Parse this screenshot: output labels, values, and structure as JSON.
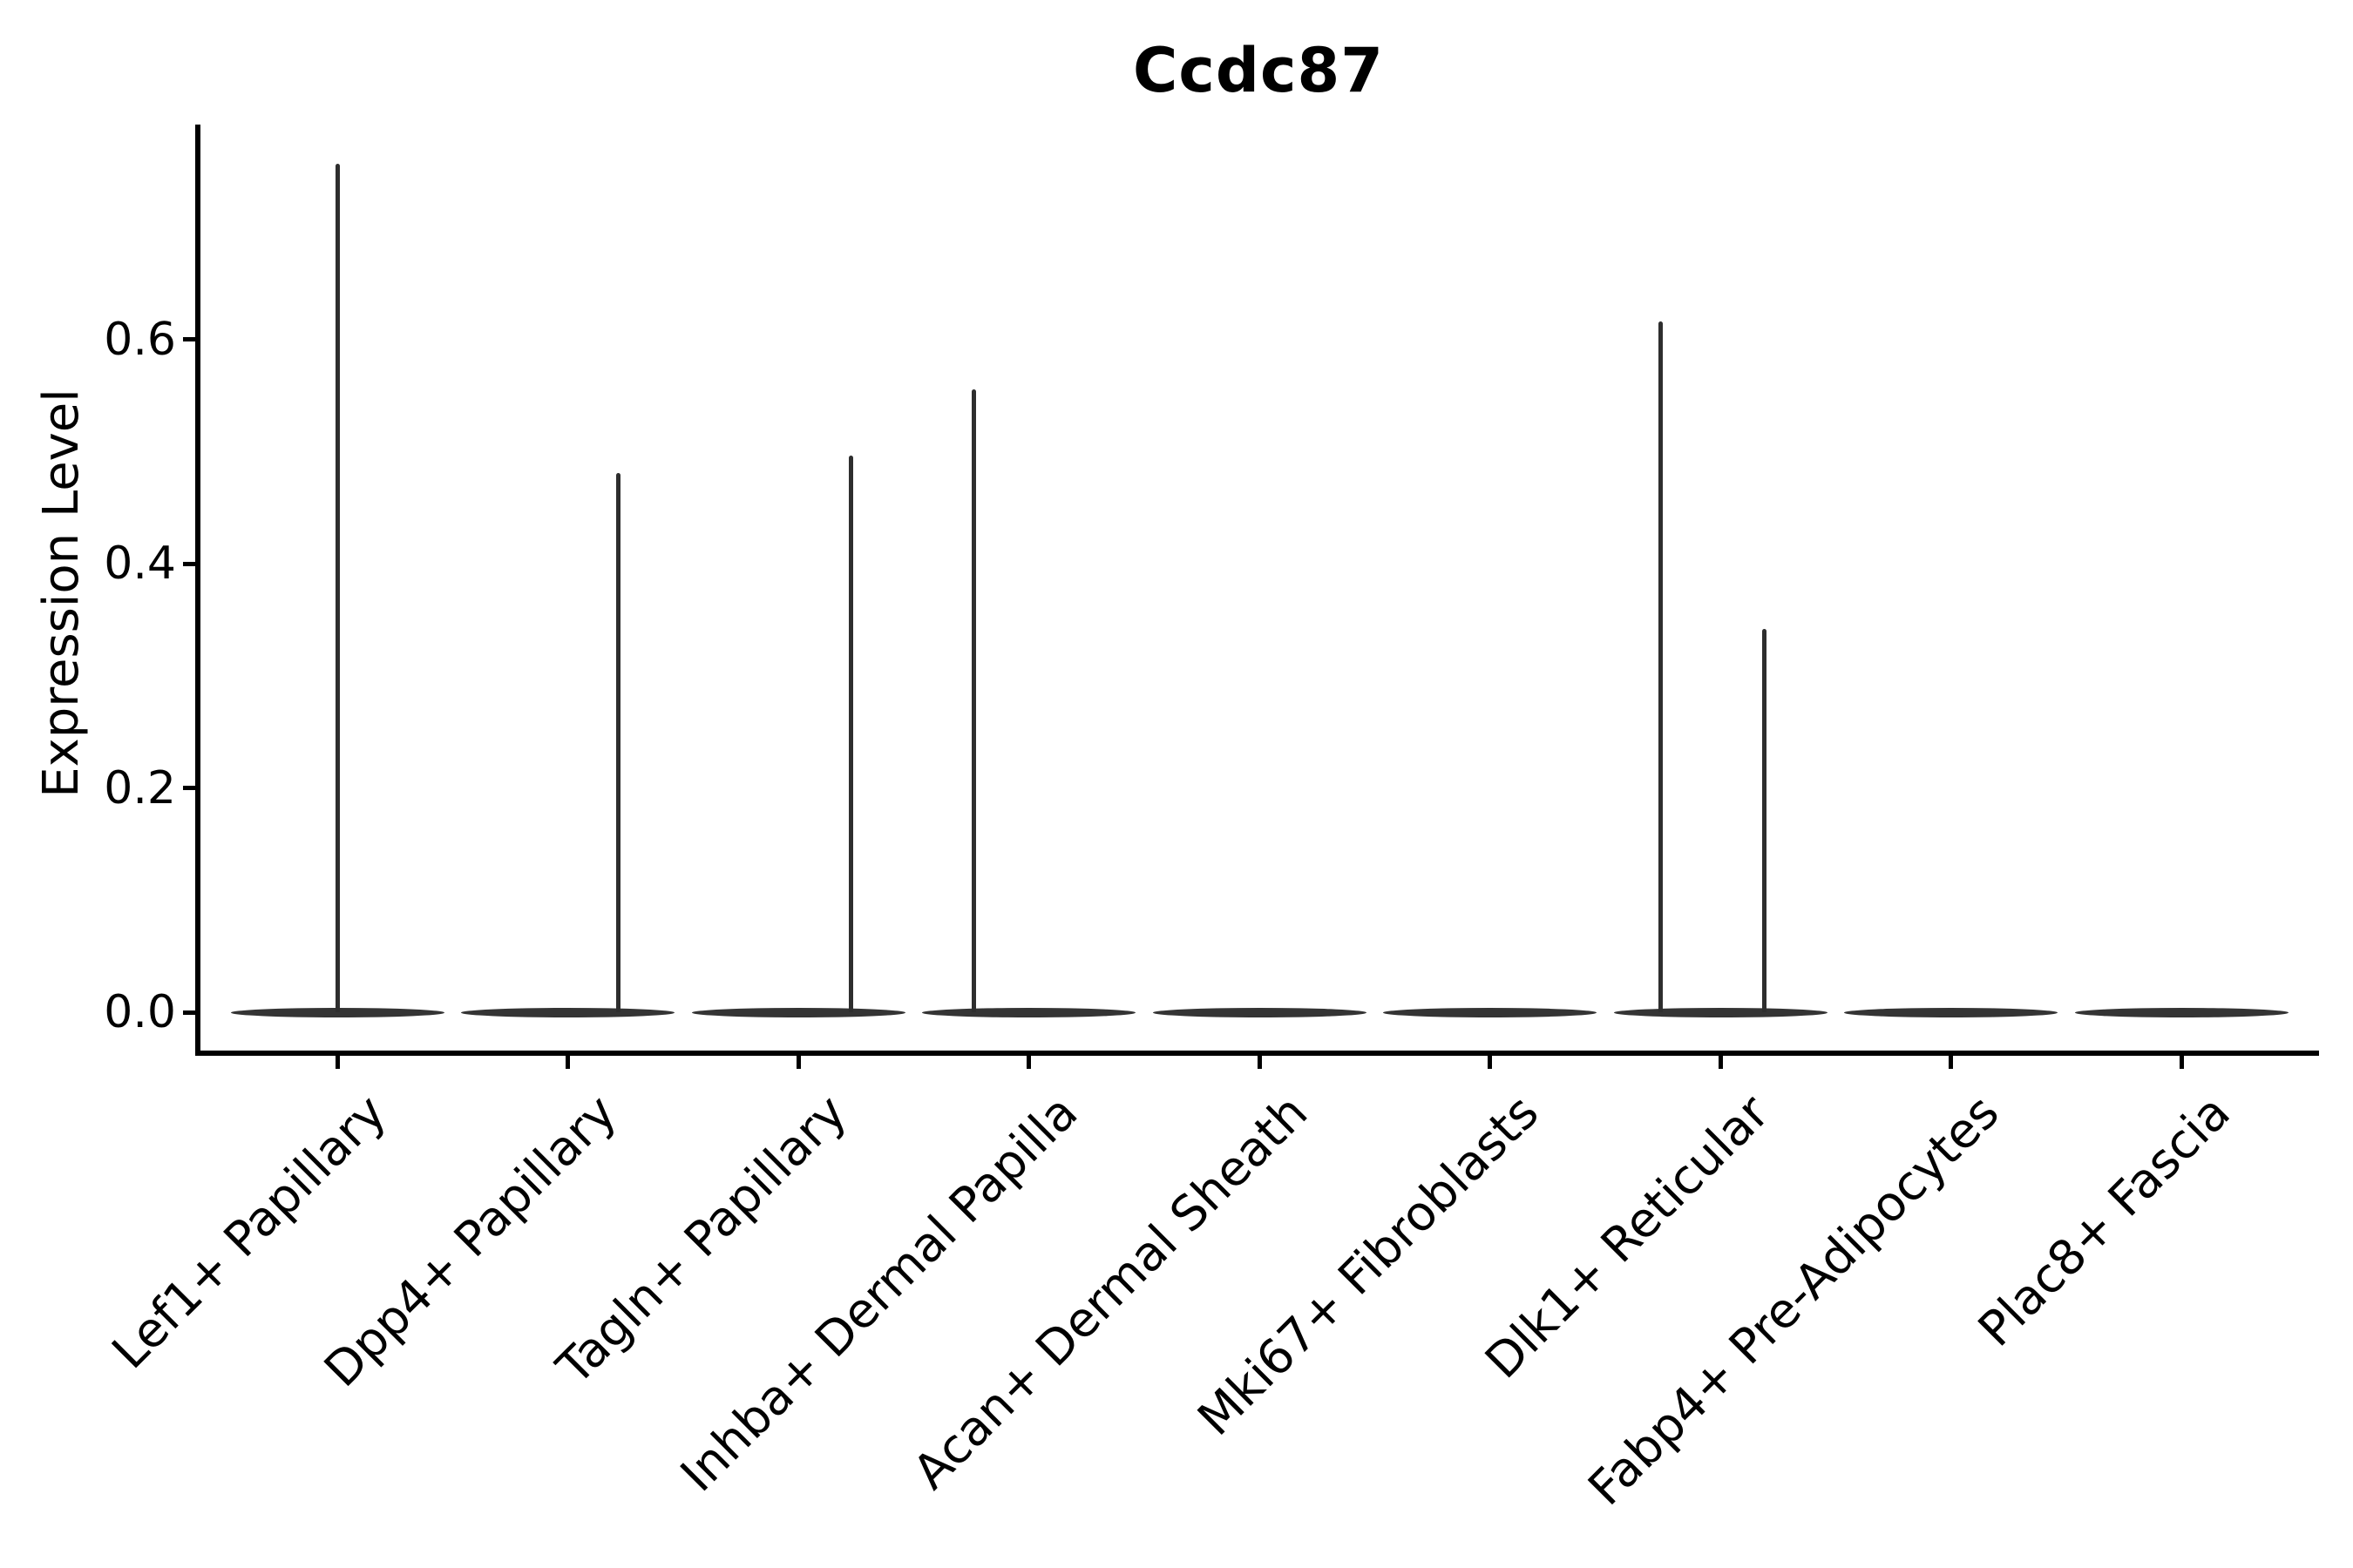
{
  "chart_data": {
    "type": "violin",
    "title": "Ccdc87",
    "ylabel": "Expression Level",
    "xlabel": "",
    "grid": false,
    "legend": "none",
    "ylim": [
      0,
      0.79
    ],
    "yticks": [
      {
        "label": "0.0",
        "value": 0.0
      },
      {
        "label": "0.2",
        "value": 0.2
      },
      {
        "label": "0.4",
        "value": 0.4
      },
      {
        "label": "0.6",
        "value": 0.6
      }
    ],
    "categories": [
      "Lef1+ Papillary",
      "Dpp4+ Papillary",
      "Tagln+ Papillary",
      "Inhba+ Dermal Papilla",
      "Acan+ Dermal Sheath",
      "Mki67+ Fibroblasts",
      "Dlk1+ Reticular",
      "Fabp4+ Pre-Adipocytes",
      "Plac8+ Fascia"
    ],
    "series": [
      {
        "name": "Lef1+ Papillary",
        "baseline_value": 0,
        "spikes": [
          {
            "value": 0.757,
            "x_offset": 0.0
          }
        ]
      },
      {
        "name": "Dpp4+ Papillary",
        "baseline_value": 0,
        "spikes": [
          {
            "value": 0.481,
            "x_offset": 0.22
          }
        ]
      },
      {
        "name": "Tagln+ Papillary",
        "baseline_value": 0,
        "spikes": [
          {
            "value": 0.497,
            "x_offset": 0.23
          }
        ]
      },
      {
        "name": "Inhba+ Dermal Papilla",
        "baseline_value": 0,
        "spikes": [
          {
            "value": 0.556,
            "x_offset": -0.24
          }
        ]
      },
      {
        "name": "Acan+ Dermal Sheath",
        "baseline_value": 0,
        "spikes": []
      },
      {
        "name": "Mki67+ Fibroblasts",
        "baseline_value": 0,
        "spikes": []
      },
      {
        "name": "Dlk1+ Reticular",
        "baseline_value": 0,
        "spikes": [
          {
            "value": 0.616,
            "x_offset": -0.26
          },
          {
            "value": 0.342,
            "x_offset": 0.19
          }
        ]
      },
      {
        "name": "Fabp4+ Pre-Adipocytes",
        "baseline_value": 0,
        "spikes": []
      },
      {
        "name": "Plac8+ Fascia",
        "baseline_value": 0,
        "spikes": []
      }
    ],
    "violin_rel_width": 0.93,
    "colors": {
      "violin": "#2e2e2e",
      "violin_base": "#343434",
      "axis": "#000000",
      "text": "#000000",
      "background": "#ffffff"
    }
  }
}
